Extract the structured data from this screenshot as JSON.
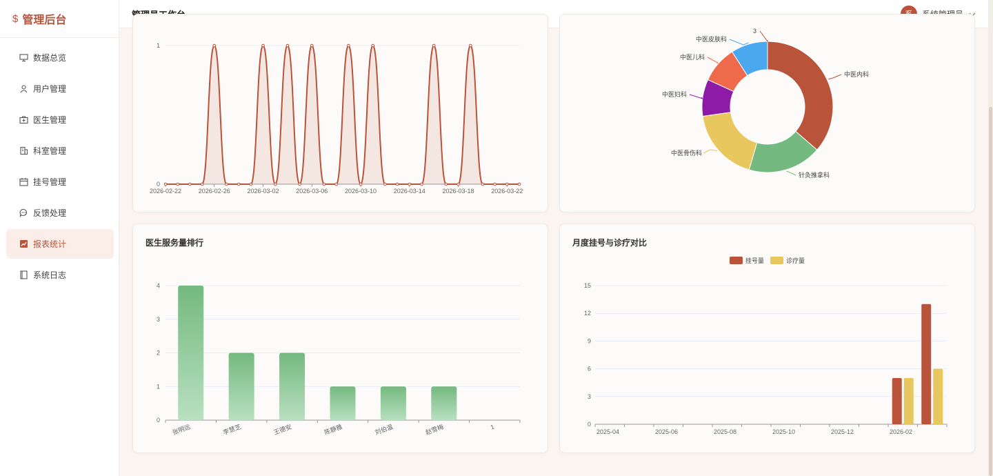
{
  "app": {
    "brand": "管理后台"
  },
  "sidebar": {
    "items": [
      {
        "label": "数据总览",
        "icon": "monitor-icon"
      },
      {
        "label": "用户管理",
        "icon": "user-icon"
      },
      {
        "label": "医生管理",
        "icon": "medical-kit-icon"
      },
      {
        "label": "科室管理",
        "icon": "building-icon"
      },
      {
        "label": "挂号管理",
        "icon": "calendar-icon"
      },
      {
        "label": "反馈处理",
        "icon": "chat-icon"
      },
      {
        "label": "报表统计",
        "icon": "chart-icon",
        "active": true
      },
      {
        "label": "系统日志",
        "icon": "book-icon"
      }
    ]
  },
  "header": {
    "title": "管理员工作台",
    "user_name": "系统管理员",
    "avatar_char": "系"
  },
  "colors": {
    "brand": "#b9533a",
    "green": "#74b97f",
    "yellow": "#e8c75e"
  },
  "chart_data": [
    {
      "type": "area",
      "x": [
        "2026-02-22",
        "2026-02-23",
        "2026-02-24",
        "2026-02-25",
        "2026-02-26",
        "2026-02-27",
        "2026-02-28",
        "2026-03-01",
        "2026-03-02",
        "2026-03-03",
        "2026-03-04",
        "2026-03-05",
        "2026-03-06",
        "2026-03-07",
        "2026-03-08",
        "2026-03-09",
        "2026-03-10",
        "2026-03-11",
        "2026-03-12",
        "2026-03-13",
        "2026-03-14",
        "2026-03-15",
        "2026-03-16",
        "2026-03-17",
        "2026-03-18",
        "2026-03-19",
        "2026-03-20",
        "2026-03-21",
        "2026-03-22",
        "2026-03-23"
      ],
      "values": [
        0,
        0,
        0,
        0,
        1,
        0,
        0,
        0,
        1,
        0,
        1,
        0,
        1,
        0,
        0,
        1,
        0,
        1,
        0,
        0,
        0,
        0,
        1,
        0,
        0,
        1,
        0,
        0,
        0,
        0
      ],
      "xticks": [
        "2026-02-22",
        "2026-02-26",
        "2026-03-02",
        "2026-03-06",
        "2026-03-10",
        "2026-03-14",
        "2026-03-18",
        "2026-03-22"
      ],
      "yticks": [
        "0",
        "1"
      ],
      "ylim": [
        0,
        1
      ]
    },
    {
      "type": "pie",
      "categories": [
        "中医内科",
        "针灸推拿科",
        "中医骨伤科",
        "中医妇科",
        "中医儿科",
        "中医皮肤科",
        ""
      ],
      "values": [
        6,
        3,
        3,
        1.5,
        1.5,
        1.5,
        0
      ],
      "colors": [
        "#b9533a",
        "#74b97f",
        "#e8c75e",
        "#8e1aa8",
        "#ef6a4a",
        "#4aa8ee",
        "#b9533a"
      ],
      "annotation": "3"
    },
    {
      "type": "bar",
      "title": "医生服务量排行",
      "categories": [
        "张明远",
        "李慧芝",
        "王德安",
        "陈静雅",
        "刘伯温",
        "赵雪梅",
        "1"
      ],
      "values": [
        4,
        2,
        2,
        1,
        1,
        1,
        0
      ],
      "yticks": [
        "0",
        "1",
        "2",
        "3",
        "4"
      ],
      "ylim": [
        0,
        4
      ]
    },
    {
      "type": "bar",
      "title": "月度挂号与诊疗对比",
      "categories": [
        "2025-04",
        "2025-05",
        "2025-06",
        "2025-07",
        "2025-08",
        "2025-09",
        "2025-10",
        "2025-11",
        "2025-12",
        "2026-01",
        "2026-02",
        "2026-03"
      ],
      "xticks": [
        "2025-04",
        "2025-06",
        "2025-08",
        "2025-10",
        "2025-12",
        "2026-02"
      ],
      "series": [
        {
          "name": "挂号量",
          "values": [
            0,
            0,
            0,
            0,
            0,
            0,
            0,
            0,
            0,
            0,
            5,
            13
          ],
          "color": "#b9533a"
        },
        {
          "name": "诊疗量",
          "values": [
            0,
            0,
            0,
            0,
            0,
            0,
            0,
            0,
            0,
            0,
            5,
            6
          ],
          "color": "#e8c75e"
        }
      ],
      "yticks": [
        "0",
        "3",
        "6",
        "9",
        "12",
        "15"
      ],
      "ylim": [
        0,
        15
      ],
      "legend": "top-center"
    }
  ]
}
